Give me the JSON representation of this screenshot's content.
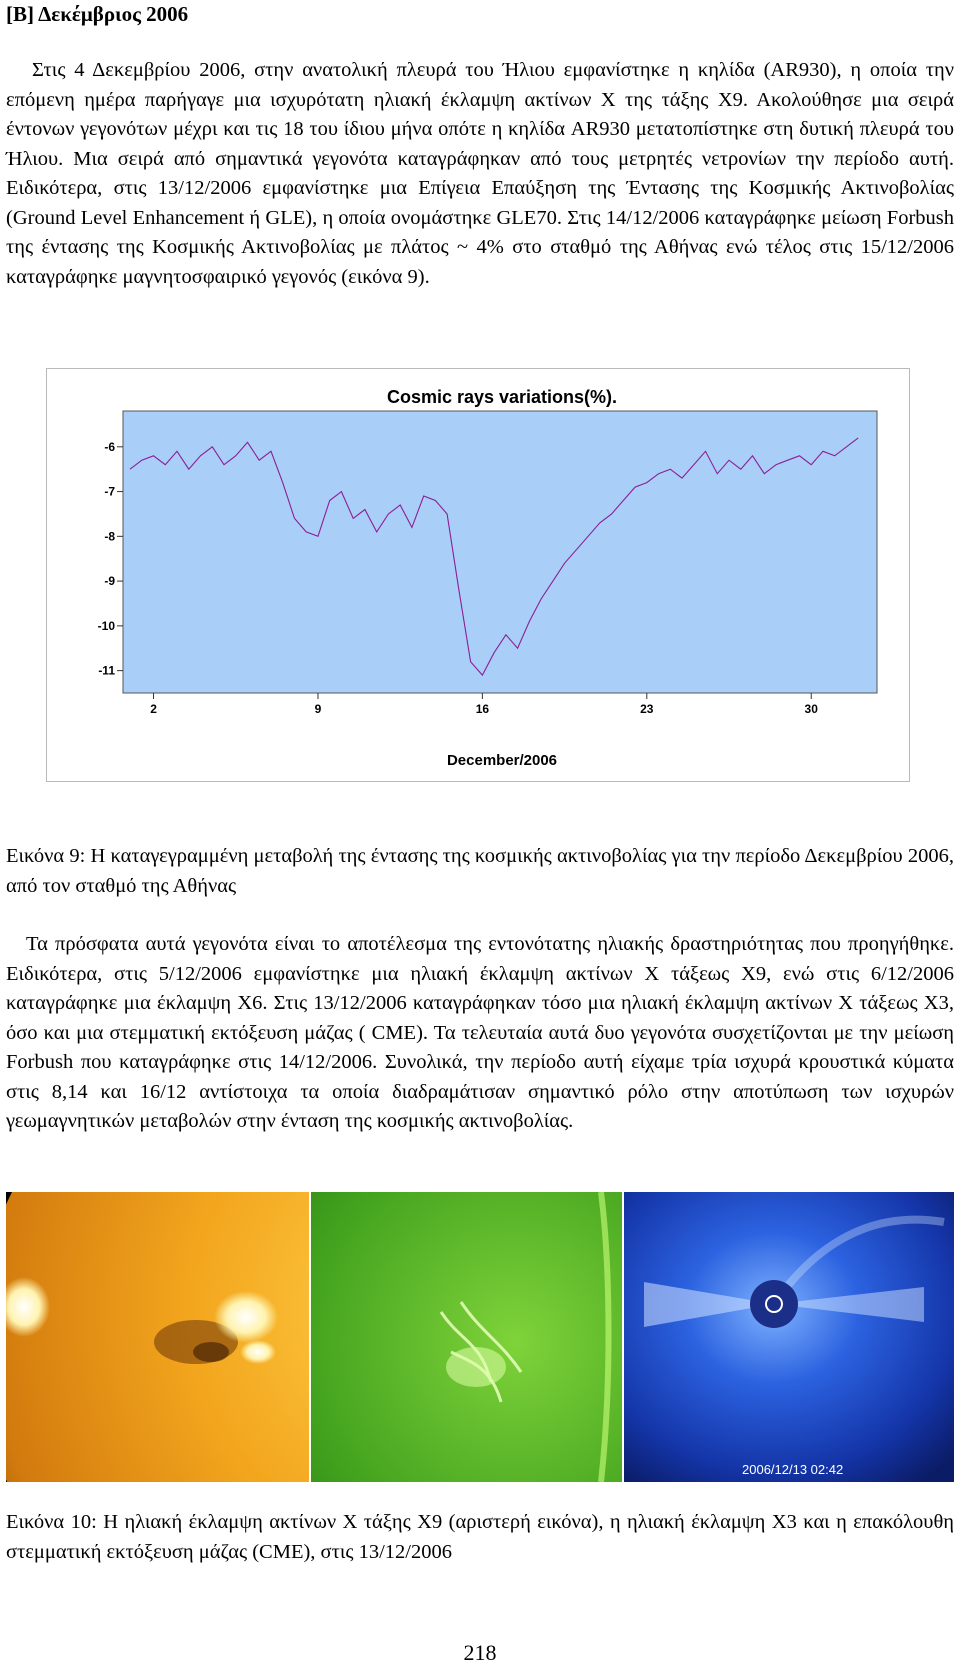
{
  "heading": "[Β] Δεκέμβριος 2006",
  "paragraph1": "Στις 4 Δεκεμβρίου 2006, στην ανατολική πλευρά του Ήλιου εμφανίστηκε η κηλίδα (AR930), η οποία την επόμενη ημέρα παρήγαγε μια ισχυρότατη ηλιακή έκλαμψη ακτίνων Χ της τάξης Χ9. Ακολούθησε μια σειρά έντονων γεγονότων μέχρι και τις 18 του ίδιου μήνα οπότε η κηλίδα AR930 μετατοπίστηκε στη δυτική πλευρά του Ήλιου. Μια σειρά από σημαντικά γεγονότα καταγράφηκαν από τους μετρητές νετρονίων την περίοδο αυτή. Ειδικότερα, στις 13/12/2006 εμφανίστηκε μια Επίγεια Επαύξηση της Έντασης της Κοσμικής Ακτινοβολίας (Ground Level Enhancement ή GLE), η οποία ονομάστηκε GLE70. Στις 14/12/2006 καταγράφηκε μείωση Forbush της έντασης της Κοσμικής Ακτινοβολίας με πλάτος ~ 4% στο σταθμό της Αθήνας ενώ τέλος στις 15/12/2006 καταγράφηκε μαγνητοσφαιρικό γεγονός (εικόνα 9).",
  "figure9_caption": "Εικόνα 9: Η καταγεγραμμένη μεταβολή της έντασης της κοσμικής ακτινοβολίας για την περίοδο Δεκεμβρίου 2006, από τον σταθμό της Αθήνας",
  "paragraph2": "Τα πρόσφατα αυτά γεγονότα είναι το αποτέλεσμα της εντονότατης ηλιακής δραστηριότητας που προηγήθηκε. Ειδικότερα, στις 5/12/2006 εμφανίστηκε μια ηλιακή έκλαμψη ακτίνων Χ τάξεως Χ9, ενώ στις 6/12/2006 καταγράφηκε μια έκλαμψη Χ6. Στις 13/12/2006 καταγράφηκαν τόσο μια ηλιακή έκλαμψη ακτίνων Χ τάξεως Χ3, όσο και μια στεμματική εκτόξευση μάζας ( CME). Τα τελευταία αυτά δυο γεγονότα συσχετίζονται με την μείωση Forbush που καταγράφηκε στις 14/12/2006. Συνολικά, την περίοδο αυτή είχαμε τρία ισχυρά κρουστικά κύματα στις 8,14 και 16/12 αντίστοιχα τα οποία διαδραμάτισαν σημαντικό ρόλο στην αποτύπωση των ισχυρών γεωμαγνητικών μεταβολών στην ένταση της κοσμικής ακτινοβολίας.",
  "figure10_timestamp": "2006/12/13 02:42",
  "figure10_caption": "Εικόνα 10: Η ηλιακή έκλαμψη ακτίνων Χ τάξης Χ9 (αριστερή εικόνα), η ηλιακή έκλαμψη Χ3 και η επακόλουθη στεμματική εκτόξευση μάζας (CME), στις 13/12/2006",
  "page_number": "218",
  "colors": {
    "plot_background": "#a9cff8",
    "series_line": "#8b1f96",
    "photo_orange": "#f0a020",
    "photo_green": "#3fa020",
    "photo_blue": "#1a4fd0"
  },
  "chart_data": {
    "type": "line",
    "title": "Cosmic rays variations(%).",
    "xlabel": "December/2006",
    "ylabel": "",
    "x_ticks": [
      2,
      9,
      16,
      23,
      30
    ],
    "y_ticks": [
      -6,
      -7,
      -8,
      -9,
      -10,
      -11
    ],
    "xlim": [
      0.7,
      32.8
    ],
    "ylim": [
      -11.5,
      -5.2
    ],
    "grid": false,
    "series": [
      {
        "x": [
          1,
          1.5,
          2,
          2.5,
          3,
          3.5,
          4,
          4.5,
          5,
          5.5,
          6,
          6.5,
          7,
          7.5,
          8,
          8.5,
          9,
          9.5,
          10,
          10.5,
          11,
          11.5,
          12,
          12.5,
          13,
          13.5,
          14,
          14.5,
          15,
          15.5,
          16,
          16.5,
          17,
          17.5,
          18,
          18.5,
          19,
          19.5,
          20,
          20.5,
          21,
          21.5,
          22,
          22.5,
          23,
          23.5,
          24,
          24.5,
          25,
          25.5,
          26,
          26.5,
          27,
          27.5,
          28,
          28.5,
          29,
          29.5,
          30,
          30.5,
          31,
          31.5,
          32
        ],
        "y": [
          -6.5,
          -6.3,
          -6.2,
          -6.4,
          -6.1,
          -6.5,
          -6.2,
          -6.0,
          -6.4,
          -6.2,
          -5.9,
          -6.3,
          -6.1,
          -6.8,
          -7.6,
          -7.9,
          -8.0,
          -7.2,
          -7.0,
          -7.6,
          -7.4,
          -7.9,
          -7.5,
          -7.3,
          -7.8,
          -7.1,
          -7.2,
          -7.5,
          -9.2,
          -10.8,
          -11.1,
          -10.6,
          -10.2,
          -10.5,
          -9.9,
          -9.4,
          -9.0,
          -8.6,
          -8.3,
          -8.0,
          -7.7,
          -7.5,
          -7.2,
          -6.9,
          -6.8,
          -6.6,
          -6.5,
          -6.7,
          -6.4,
          -6.1,
          -6.6,
          -6.3,
          -6.5,
          -6.2,
          -6.6,
          -6.4,
          -6.3,
          -6.2,
          -6.4,
          -6.1,
          -6.2,
          -6.0,
          -5.8
        ]
      }
    ]
  }
}
